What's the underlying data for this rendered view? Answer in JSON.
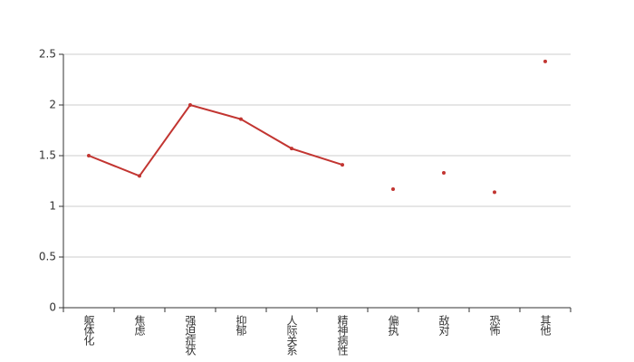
{
  "chart_data": {
    "type": "line",
    "categories": [
      "躯体化",
      "焦虑",
      "强迫症状",
      "抑郁",
      "人际关系",
      "精神病性",
      "偏执",
      "敌对",
      "恐怖",
      "其他"
    ],
    "series": [
      {
        "type": "line",
        "color": "#c23531",
        "values": [
          1.5,
          1.3,
          2.0,
          1.86,
          1.57,
          1.41,
          null,
          null,
          null,
          null
        ]
      },
      {
        "type": "scatter",
        "color": "#c23531",
        "values": [
          null,
          null,
          null,
          null,
          null,
          null,
          1.17,
          1.33,
          1.14,
          2.43
        ]
      }
    ],
    "ylim": [
      0,
      2.5
    ],
    "yticks": [
      0,
      0.5,
      1,
      1.5,
      2,
      2.5
    ],
    "grid": true
  }
}
